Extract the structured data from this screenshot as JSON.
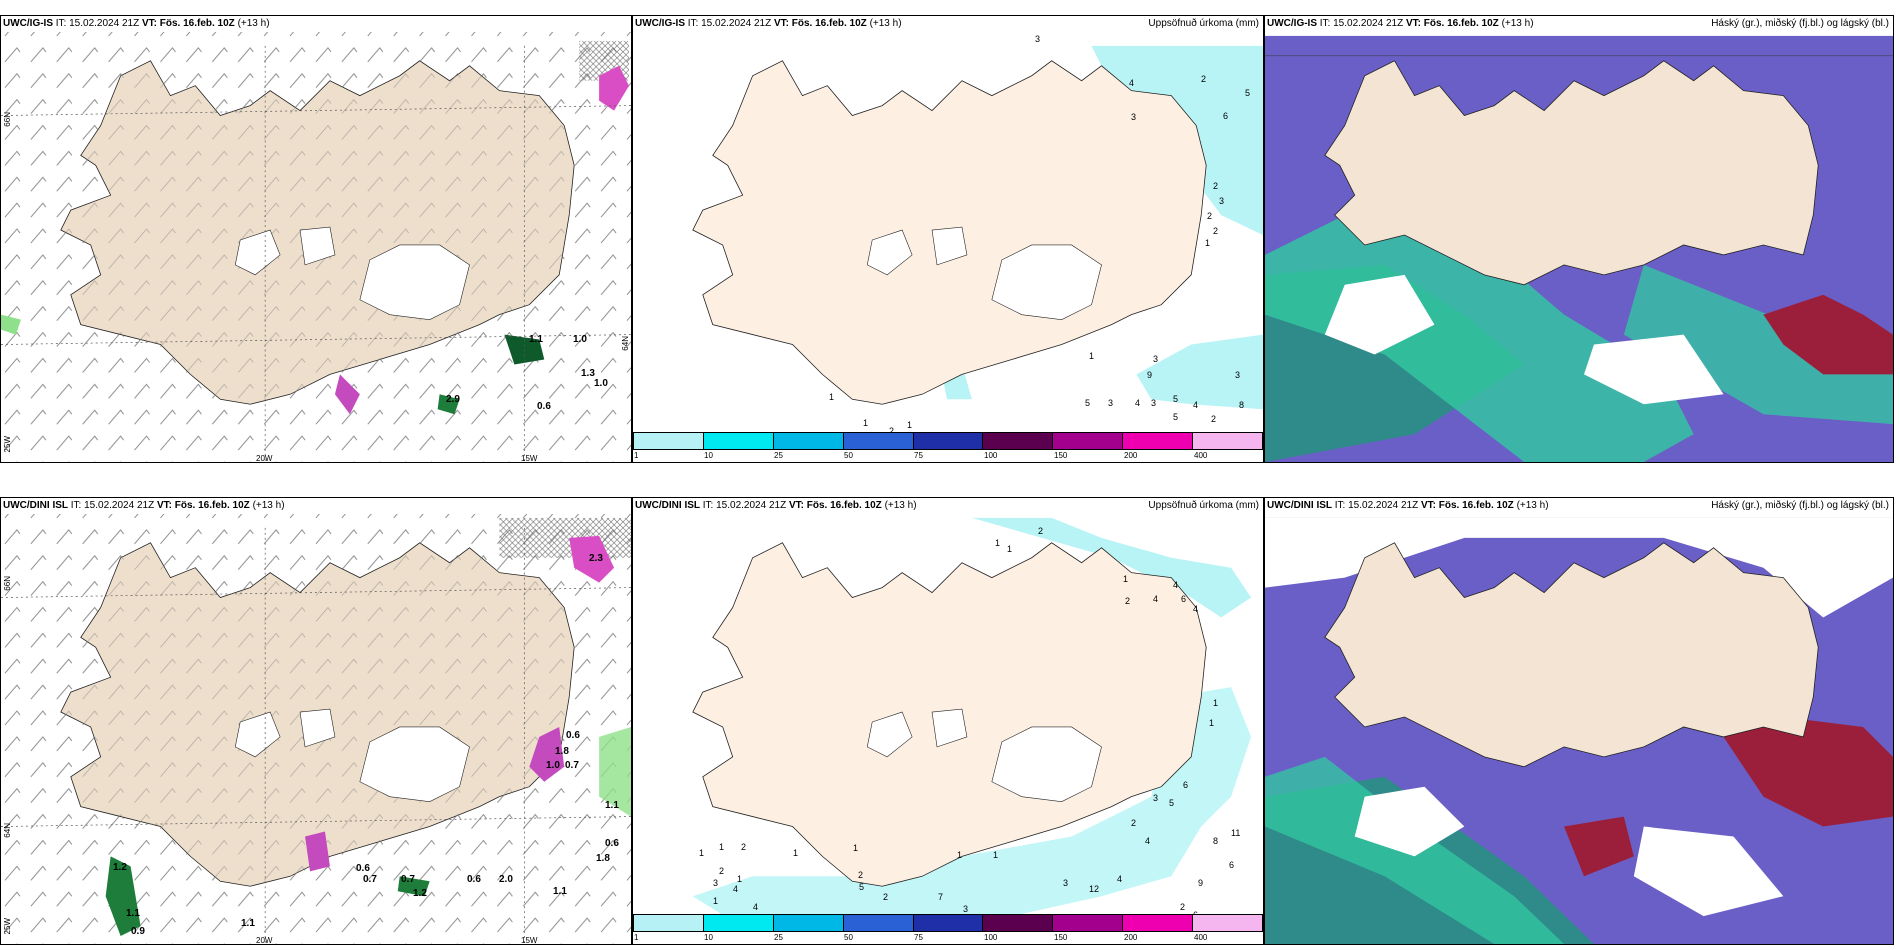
{
  "colors": {
    "land": "#f3e4d3",
    "land_wind": "#eedfcc",
    "coast": "#222222",
    "precip_light": "#b8f4f6",
    "cloud_high": "#6a5fc7",
    "cloud_mid": "#2f8a8a",
    "cloud_low_green": "#32c9a0",
    "cloud_red": "#9b1f3a"
  },
  "panels": [
    {
      "id": "ig-wind",
      "model": "UWC/IG-IS",
      "it_label": "IT:",
      "it_value": "15.02.2024 21Z",
      "vt_label": "VT:",
      "vt_value": "Fös. 16.feb. 10Z",
      "lead": "(+13 h)",
      "right_title": "",
      "lat_labels": [
        "66N",
        "64N",
        "25W"
      ],
      "lon_labels": [
        "20W",
        "15W"
      ],
      "values": [
        "1.1",
        "1.0",
        "1.3",
        "1.0",
        "0.6",
        "2.9"
      ]
    },
    {
      "id": "ig-precip",
      "model": "UWC/IG-IS",
      "it_label": "IT:",
      "it_value": "15.02.2024 21Z",
      "vt_label": "VT:",
      "vt_value": "Fös. 16.feb. 10Z",
      "lead": "(+13 h)",
      "right_title": "Uppsöfnuð úrkoma (mm)",
      "values": [
        "3",
        "2",
        "5",
        "4",
        "6",
        "3",
        "2",
        "3",
        "2",
        "2",
        "1",
        "1",
        "3",
        "9",
        "3",
        "5",
        "3",
        "4",
        "3",
        "5",
        "4",
        "8",
        "2",
        "1",
        "1",
        "2",
        "1",
        "1",
        "2",
        "4",
        "5"
      ]
    },
    {
      "id": "ig-cloud",
      "model": "UWC/IG-IS",
      "it_label": "IT:",
      "it_value": "15.02.2024 21Z",
      "vt_label": "VT:",
      "vt_value": "Fös. 16.feb. 10Z",
      "lead": "(+13 h)",
      "right_title": "Háský (gr.), miðský (fj.bl.) og lágský (bl.)"
    },
    {
      "id": "dini-wind",
      "model": "UWC/DINI ISL",
      "it_label": "IT:",
      "it_value": "15.02.2024 21Z",
      "vt_label": "VT:",
      "vt_value": "Fös. 16.feb. 10Z",
      "lead": "(+13 h)",
      "right_title": "",
      "lat_labels": [
        "66N",
        "64N",
        "25W"
      ],
      "lon_labels": [
        "20W",
        "15W"
      ],
      "values": [
        "0.6",
        "1.8",
        "1.0",
        "0.7",
        "1.1",
        "0.6",
        "1.8",
        "1.2",
        "1.1",
        "0.9",
        "1.1",
        "0.6",
        "0.7",
        "0.7",
        "1.2",
        "0.6",
        "2.0",
        "1.1",
        "2.3"
      ]
    },
    {
      "id": "dini-precip",
      "model": "UWC/DINI ISL",
      "it_label": "IT:",
      "it_value": "15.02.2024 21Z",
      "vt_label": "VT:",
      "vt_value": "Fös. 16.feb. 10Z",
      "lead": "(+13 h)",
      "right_title": "Uppsöfnuð úrkoma (mm)",
      "values": [
        "1",
        "1",
        "2",
        "1",
        "4",
        "4",
        "6",
        "4",
        "2",
        "1",
        "1",
        "6",
        "3",
        "5",
        "2",
        "4",
        "8",
        "11",
        "6",
        "1",
        "1",
        "2",
        "1",
        "1",
        "2",
        "3",
        "1",
        "4",
        "4",
        "2",
        "1",
        "5",
        "7",
        "3",
        "12",
        "4",
        "9",
        "2",
        "6",
        "3",
        "1",
        "2",
        "1"
      ]
    },
    {
      "id": "dini-cloud",
      "model": "UWC/DINI ISL",
      "it_label": "IT:",
      "it_value": "15.02.2024 21Z",
      "vt_label": "VT:",
      "vt_value": "Fös. 16.feb. 10Z",
      "lead": "(+13 h)",
      "right_title": "Háský (gr.), miðský (fj.bl.) og lágský (bl.)"
    }
  ],
  "colorbar": {
    "labels": [
      "1",
      "10",
      "25",
      "50",
      "75",
      "100",
      "150",
      "200",
      "400"
    ],
    "colors": [
      "#b6f2f5",
      "#00e9f0",
      "#00b8e6",
      "#2a62d6",
      "#1f2fa8",
      "#5a004f",
      "#a3008d",
      "#ee00b0",
      "#f5b6ef"
    ]
  }
}
